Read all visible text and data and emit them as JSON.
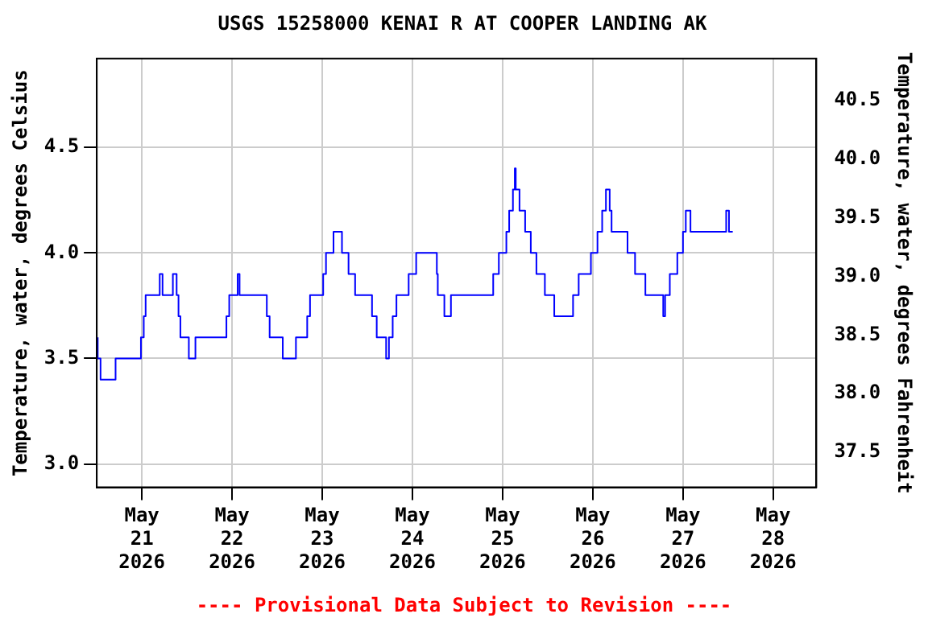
{
  "chart_data": {
    "type": "step",
    "title": "USGS 15258000 KENAI R AT COOPER LANDING AK",
    "ylabel": "Temperature, water, degrees Celsius",
    "y2label": "Temperature, water, degrees Fahrenheit",
    "annotations": [
      "---- Provisional Data Subject to Revision ----"
    ],
    "xlim": [
      "2026-05-20T12:00",
      "2026-05-28T11:30"
    ],
    "xticks": [
      {
        "value": "2026-05-21",
        "label": "May\n21\n2026"
      },
      {
        "value": "2026-05-22",
        "label": "May\n22\n2026"
      },
      {
        "value": "2026-05-23",
        "label": "May\n23\n2026"
      },
      {
        "value": "2026-05-24",
        "label": "May\n24\n2026"
      },
      {
        "value": "2026-05-25",
        "label": "May\n25\n2026"
      },
      {
        "value": "2026-05-26",
        "label": "May\n26\n2026"
      },
      {
        "value": "2026-05-27",
        "label": "May\n27\n2026"
      },
      {
        "value": "2026-05-28",
        "label": "May\n28\n2026"
      }
    ],
    "ylim": [
      2.89,
      4.92
    ],
    "yticks": [
      {
        "value": 3,
        "label": "3.0"
      },
      3.5,
      {
        "value": 4,
        "label": "4.0"
      },
      4.5
    ],
    "y2lim": [
      37.2,
      40.86
    ],
    "y2ticks": [
      37.5,
      {
        "value": 38,
        "label": "38.0"
      },
      38.5,
      {
        "value": 39,
        "label": "39.0"
      },
      39.5,
      {
        "value": 40,
        "label": "40.0"
      },
      40.5
    ],
    "grid": true,
    "legend": false,
    "line_style": "solid",
    "marker": "none",
    "series": [
      {
        "color": "#0000ff",
        "x": [
          "2026-05-20T12:15",
          "2026-05-20T13:00",
          "2026-05-20T17:00",
          "2026-05-20T23:45",
          "2026-05-21T00:30",
          "2026-05-21T01:00",
          "2026-05-21T04:45",
          "2026-05-21T05:30",
          "2026-05-21T08:15",
          "2026-05-21T09:15",
          "2026-05-21T09:45",
          "2026-05-21T10:15",
          "2026-05-21T12:30",
          "2026-05-21T14:15",
          "2026-05-21T22:30",
          "2026-05-21T23:15",
          "2026-05-22T01:30",
          "2026-05-22T02:00",
          "2026-05-22T09:15",
          "2026-05-22T10:00",
          "2026-05-22T13:30",
          "2026-05-22T17:00",
          "2026-05-22T20:00",
          "2026-05-22T20:45",
          "2026-05-23T00:15",
          "2026-05-23T01:00",
          "2026-05-23T03:00",
          "2026-05-23T05:15",
          "2026-05-23T07:00",
          "2026-05-23T08:45",
          "2026-05-23T13:15",
          "2026-05-23T14:30",
          "2026-05-23T17:00",
          "2026-05-23T17:45",
          "2026-05-23T18:45",
          "2026-05-23T19:45",
          "2026-05-23T23:00",
          "2026-05-24T01:00",
          "2026-05-24T06:30",
          "2026-05-24T06:45",
          "2026-05-24T08:30",
          "2026-05-24T10:15",
          "2026-05-24T21:30",
          "2026-05-24T23:00",
          "2026-05-25T01:00",
          "2026-05-25T01:45",
          "2026-05-25T02:45",
          "2026-05-25T03:15",
          "2026-05-25T03:30",
          "2026-05-25T04:30",
          "2026-05-25T06:00",
          "2026-05-25T07:30",
          "2026-05-25T09:00",
          "2026-05-25T11:15",
          "2026-05-25T13:45",
          "2026-05-25T18:45",
          "2026-05-25T20:15",
          "2026-05-25T23:30",
          "2026-05-26T01:15",
          "2026-05-26T02:30",
          "2026-05-26T03:30",
          "2026-05-26T04:30",
          "2026-05-26T05:00",
          "2026-05-26T09:15",
          "2026-05-26T11:15",
          "2026-05-26T14:00",
          "2026-05-26T18:45",
          "2026-05-26T19:15",
          "2026-05-26T20:30",
          "2026-05-26T22:30",
          "2026-05-27T00:00",
          "2026-05-27T00:45",
          "2026-05-27T02:00",
          "2026-05-27T11:30",
          "2026-05-27T12:15",
          "2026-05-27T13:00",
          "2026-05-27T13:15"
        ],
        "values": [
          3.6,
          3.5,
          3.4,
          3.5,
          3.6,
          3.7,
          3.8,
          3.9,
          3.8,
          3.9,
          3.8,
          3.7,
          3.6,
          3.5,
          3.6,
          3.7,
          3.8,
          3.9,
          3.8,
          3.7,
          3.6,
          3.5,
          3.6,
          3.7,
          3.8,
          3.9,
          4.0,
          4.1,
          4.0,
          3.9,
          3.8,
          3.7,
          3.6,
          3.5,
          3.6,
          3.7,
          3.8,
          3.9,
          4.0,
          3.9,
          3.8,
          3.7,
          3.8,
          3.9,
          4.0,
          4.1,
          4.2,
          4.3,
          4.4,
          4.3,
          4.2,
          4.1,
          4.0,
          3.9,
          3.8,
          3.7,
          3.8,
          3.9,
          4.0,
          4.1,
          4.2,
          4.3,
          4.2,
          4.1,
          4.0,
          3.9,
          3.8,
          3.7,
          3.8,
          3.9,
          4.0,
          4.1,
          4.2,
          4.1,
          4.2,
          4.1,
          4.1
        ]
      }
    ]
  }
}
